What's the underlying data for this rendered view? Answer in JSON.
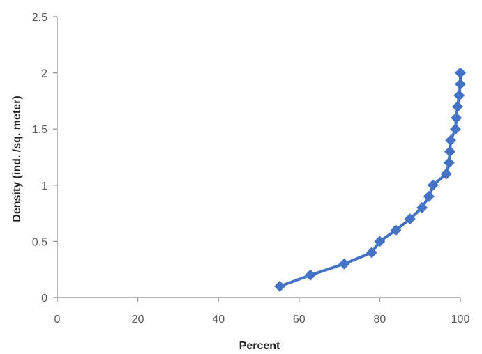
{
  "chart_data": {
    "type": "line",
    "title": "",
    "xlabel": "Percent",
    "ylabel": "Density (ind. /sq. meter)",
    "xlim": [
      0,
      100
    ],
    "ylim": [
      0,
      2.5
    ],
    "xticks": [
      0,
      20,
      40,
      60,
      80,
      100
    ],
    "yticks": [
      0,
      0.5,
      1,
      1.5,
      2,
      2.5
    ],
    "xtick_labels": [
      "0",
      "20",
      "40",
      "60",
      "80",
      "100"
    ],
    "ytick_labels": [
      "0",
      "0.5",
      "1",
      "1.5",
      "2",
      "2.5"
    ],
    "grid": false,
    "legend": "none",
    "marker": "diamond",
    "series": [
      {
        "color": "#4472c4",
        "x": [
          55.2,
          62.8,
          71.2,
          78.0,
          80.0,
          84.0,
          87.5,
          90.5,
          92.2,
          93.2,
          96.5,
          97.2,
          97.4,
          97.6,
          98.8,
          99.0,
          99.3,
          99.7,
          100,
          100
        ],
        "y": [
          0.1,
          0.2,
          0.3,
          0.4,
          0.5,
          0.6,
          0.7,
          0.8,
          0.9,
          1.0,
          1.1,
          1.2,
          1.3,
          1.4,
          1.5,
          1.6,
          1.7,
          1.8,
          1.9,
          2.0
        ]
      }
    ]
  }
}
